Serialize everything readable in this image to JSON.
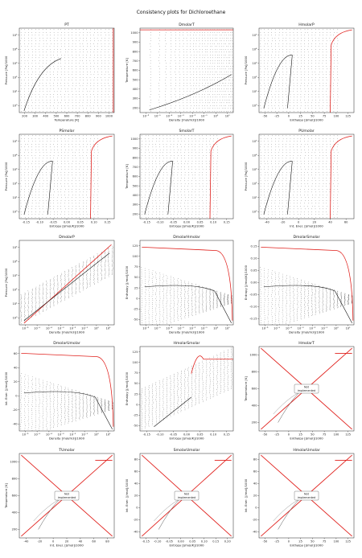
{
  "figure": {
    "title": "Consistency plots for Dichloroethane"
  },
  "chart_data": [
    {
      "title": "PT",
      "type": "scatter",
      "xlabel": "Temperature [K]",
      "ylabel": "Pressure [Pa]/1000",
      "xticks": [
        "200",
        "300",
        "400",
        "500",
        "600",
        "700",
        "800",
        "900",
        "1000"
      ],
      "yticks": [
        "10⁰",
        "10¹",
        "10²",
        "10³",
        "10⁴",
        "10⁵"
      ],
      "implemented": true,
      "curve": "saturation"
    },
    {
      "title": "DmolarT",
      "type": "scatter",
      "xlabel": "Density [mol/m3]/1000",
      "ylabel": "Temperature [K]",
      "xticks": [
        "10⁻⁶",
        "10⁻⁵",
        "10⁻⁴",
        "10⁻³",
        "10⁻²",
        "10⁻¹",
        "10⁰",
        "10¹"
      ],
      "yticks": [
        "200",
        "300",
        "400",
        "500",
        "600",
        "700",
        "800",
        "900",
        "1000"
      ],
      "implemented": true,
      "curve": "logdense"
    },
    {
      "title": "HmolarP",
      "type": "scatter",
      "xlabel": "Enthalpy [J/mol]/1000",
      "ylabel": "Pressure [Pa]/1000",
      "xticks": [
        "-50",
        "-25",
        "0",
        "25",
        "50",
        "75",
        "100",
        "125"
      ],
      "yticks": [
        "10⁰",
        "10¹",
        "10²",
        "10³",
        "10⁴",
        "10⁵"
      ],
      "implemented": true,
      "curve": "dome"
    },
    {
      "title": "PSmolar",
      "type": "scatter",
      "xlabel": "Entropy [J/mol/K]/1000",
      "ylabel": "Pressure [Pa]/1000",
      "xticks": [
        "-0.15",
        "-0.10",
        "-0.05",
        "0.00",
        "0.05",
        "0.10",
        "0.15"
      ],
      "yticks": [
        "10⁰",
        "10¹",
        "10²",
        "10³",
        "10⁴",
        "10⁵"
      ],
      "implemented": true,
      "curve": "dome"
    },
    {
      "title": "SmolarT",
      "type": "scatter",
      "xlabel": "Entropy [J/mol/K]/1000",
      "ylabel": "Temperature [K]",
      "xticks": [
        "-0.15",
        "-0.10",
        "-0.05",
        "0.00",
        "0.05",
        "0.10",
        "0.15"
      ],
      "yticks": [
        "200",
        "300",
        "400",
        "500",
        "600",
        "700",
        "800",
        "900",
        "1000"
      ],
      "implemented": true,
      "curve": "dome"
    },
    {
      "title": "PUmolar",
      "type": "scatter",
      "xlabel": "Int. Ener. [J/mol]/1000",
      "ylabel": "Pressure [Pa]/1000",
      "xticks": [
        "-40",
        "-20",
        "0",
        "20",
        "40",
        "60"
      ],
      "yticks": [
        "10⁰",
        "10¹",
        "10²",
        "10³",
        "10⁴",
        "10⁵"
      ],
      "implemented": true,
      "curve": "dome"
    },
    {
      "title": "DmolarP",
      "type": "scatter",
      "xlabel": "Density [mol/m3]/1000",
      "ylabel": "Pressure [Pa]/1000",
      "xticks": [
        "10⁻⁶",
        "10⁻⁵",
        "10⁻⁴",
        "10⁻³",
        "10⁻²",
        "10⁻¹",
        "10⁰",
        "10¹"
      ],
      "yticks": [
        "10⁰",
        "10¹",
        "10²",
        "10³",
        "10⁴",
        "10⁵"
      ],
      "implemented": true,
      "curve": "diagonal"
    },
    {
      "title": "DmolarHmolar",
      "type": "scatter",
      "xlabel": "Density [mol/m3]/1000",
      "ylabel": "Enthalpy [J/mol]/1000",
      "xticks": [
        "10⁻⁶",
        "10⁻⁵",
        "10⁻⁴",
        "10⁻³",
        "10⁻²",
        "10⁻¹",
        "10⁰",
        "10¹"
      ],
      "yticks": [
        "-50",
        "-25",
        "0",
        "25",
        "50",
        "75",
        "100",
        "125"
      ],
      "implemented": true,
      "curve": "fan"
    },
    {
      "title": "DmolarSmolar",
      "type": "scatter",
      "xlabel": "Density [mol/m3]/1000",
      "ylabel": "Entropy [J/mol/K]/1000",
      "xticks": [
        "10⁻⁶",
        "10⁻⁵",
        "10⁻⁴",
        "10⁻³",
        "10⁻²",
        "10⁻¹",
        "10⁰",
        "10¹"
      ],
      "yticks": [
        "-0.15",
        "-0.10",
        "-0.05",
        "0.00",
        "0.05",
        "0.10",
        "0.15"
      ],
      "implemented": true,
      "curve": "fan"
    },
    {
      "title": "DmolarUmolar",
      "type": "scatter",
      "xlabel": "Density [mol/m3]/1000",
      "ylabel": "Int. Ener. [J/mol]/1000",
      "xticks": [
        "10⁻⁶",
        "10⁻⁵",
        "10⁻⁴",
        "10⁻³",
        "10⁻²",
        "10⁻¹",
        "10⁰",
        "10¹"
      ],
      "yticks": [
        "-40",
        "-20",
        "0",
        "20",
        "40",
        "60"
      ],
      "implemented": true,
      "curve": "fan"
    },
    {
      "title": "HmolarSmolar",
      "type": "scatter",
      "xlabel": "Entropy [J/mol/K]/1000",
      "ylabel": "Enthalpy [J/mol]/1000",
      "xticks": [
        "-0.15",
        "-0.10",
        "-0.05",
        "0.00",
        "0.05",
        "0.10",
        "0.15"
      ],
      "yticks": [
        "-50",
        "-25",
        "0",
        "25",
        "50",
        "75",
        "100",
        "125"
      ],
      "implemented": true,
      "curve": "rise"
    },
    {
      "title": "HmolarT",
      "type": "scatter",
      "xlabel": "Enthalpy [J/mol]/1000",
      "ylabel": "Temperature [K]",
      "xticks": [
        "-50",
        "-25",
        "0",
        "25",
        "50",
        "75",
        "100",
        "125"
      ],
      "yticks": [
        "200",
        "400",
        "600",
        "800",
        "1000"
      ],
      "implemented": false,
      "note": "Not\nimplemented"
    },
    {
      "title": "TUmolar",
      "type": "scatter",
      "xlabel": "Int. Ener. [J/mol]/1000",
      "ylabel": "Temperature [K]",
      "xticks": [
        "-40",
        "-20",
        "0",
        "20",
        "40",
        "60",
        "80"
      ],
      "yticks": [
        "200",
        "400",
        "600",
        "800",
        "1000"
      ],
      "implemented": false,
      "note": "Not\nimplemented"
    },
    {
      "title": "SmolarUmolar",
      "type": "scatter",
      "xlabel": "Entropy [J/mol/K]/1000",
      "ylabel": "Int. Ener. [J/mol]/1000",
      "xticks": [
        "-0.15",
        "-0.10",
        "-0.05",
        "0.00",
        "0.05",
        "0.10",
        "0.15",
        "0.20"
      ],
      "yticks": [
        "-40",
        "-20",
        "0",
        "20",
        "40",
        "60",
        "80"
      ],
      "implemented": false,
      "note": "Not\nimplemented"
    },
    {
      "title": "HmolarUmolar",
      "type": "scatter",
      "xlabel": "Enthalpy [J/mol]/1000",
      "ylabel": "Int. Ener. [J/mol]/1000",
      "xticks": [
        "-50",
        "-25",
        "0",
        "25",
        "50",
        "75",
        "100",
        "125"
      ],
      "yticks": [
        "-40",
        "-20",
        "0",
        "20",
        "40",
        "60",
        "80"
      ],
      "implemented": false,
      "note": "Not\nimplemented"
    }
  ]
}
